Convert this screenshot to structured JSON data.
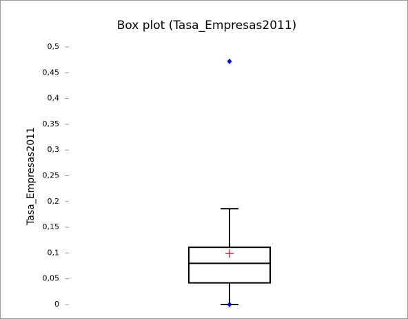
{
  "chart_data": {
    "type": "box",
    "title": "Box plot (Tasa_Empresas2011)",
    "y_label": "Tasa_Empresas2011",
    "boxes": [
      {
        "whisker_low": 0,
        "q1": 0.042,
        "median": 0.08,
        "q3": 0.111,
        "whisker_high": 0.186,
        "mean": 0.099,
        "min": 0,
        "max": 0.472
      }
    ],
    "box_color": "#000000",
    "mean_color": "#ff0000",
    "point_color": "#0000ff",
    "ylim": [
      0,
      0.5
    ],
    "yticks": [
      0,
      {
        "value": 0.05,
        "label": "0,05"
      },
      {
        "value": 0.1,
        "label": "0,1"
      },
      {
        "value": 0.15,
        "label": "0,15"
      },
      {
        "value": 0.2,
        "label": "0,2"
      },
      {
        "value": 0.25,
        "label": "0,25"
      },
      {
        "value": 0.3,
        "label": "0,3"
      },
      {
        "value": 0.35,
        "label": "0,35"
      },
      {
        "value": 0.4,
        "label": "0,4"
      },
      {
        "value": 0.45,
        "label": "0,45"
      },
      {
        "value": 0.5,
        "label": "0,5"
      }
    ]
  }
}
